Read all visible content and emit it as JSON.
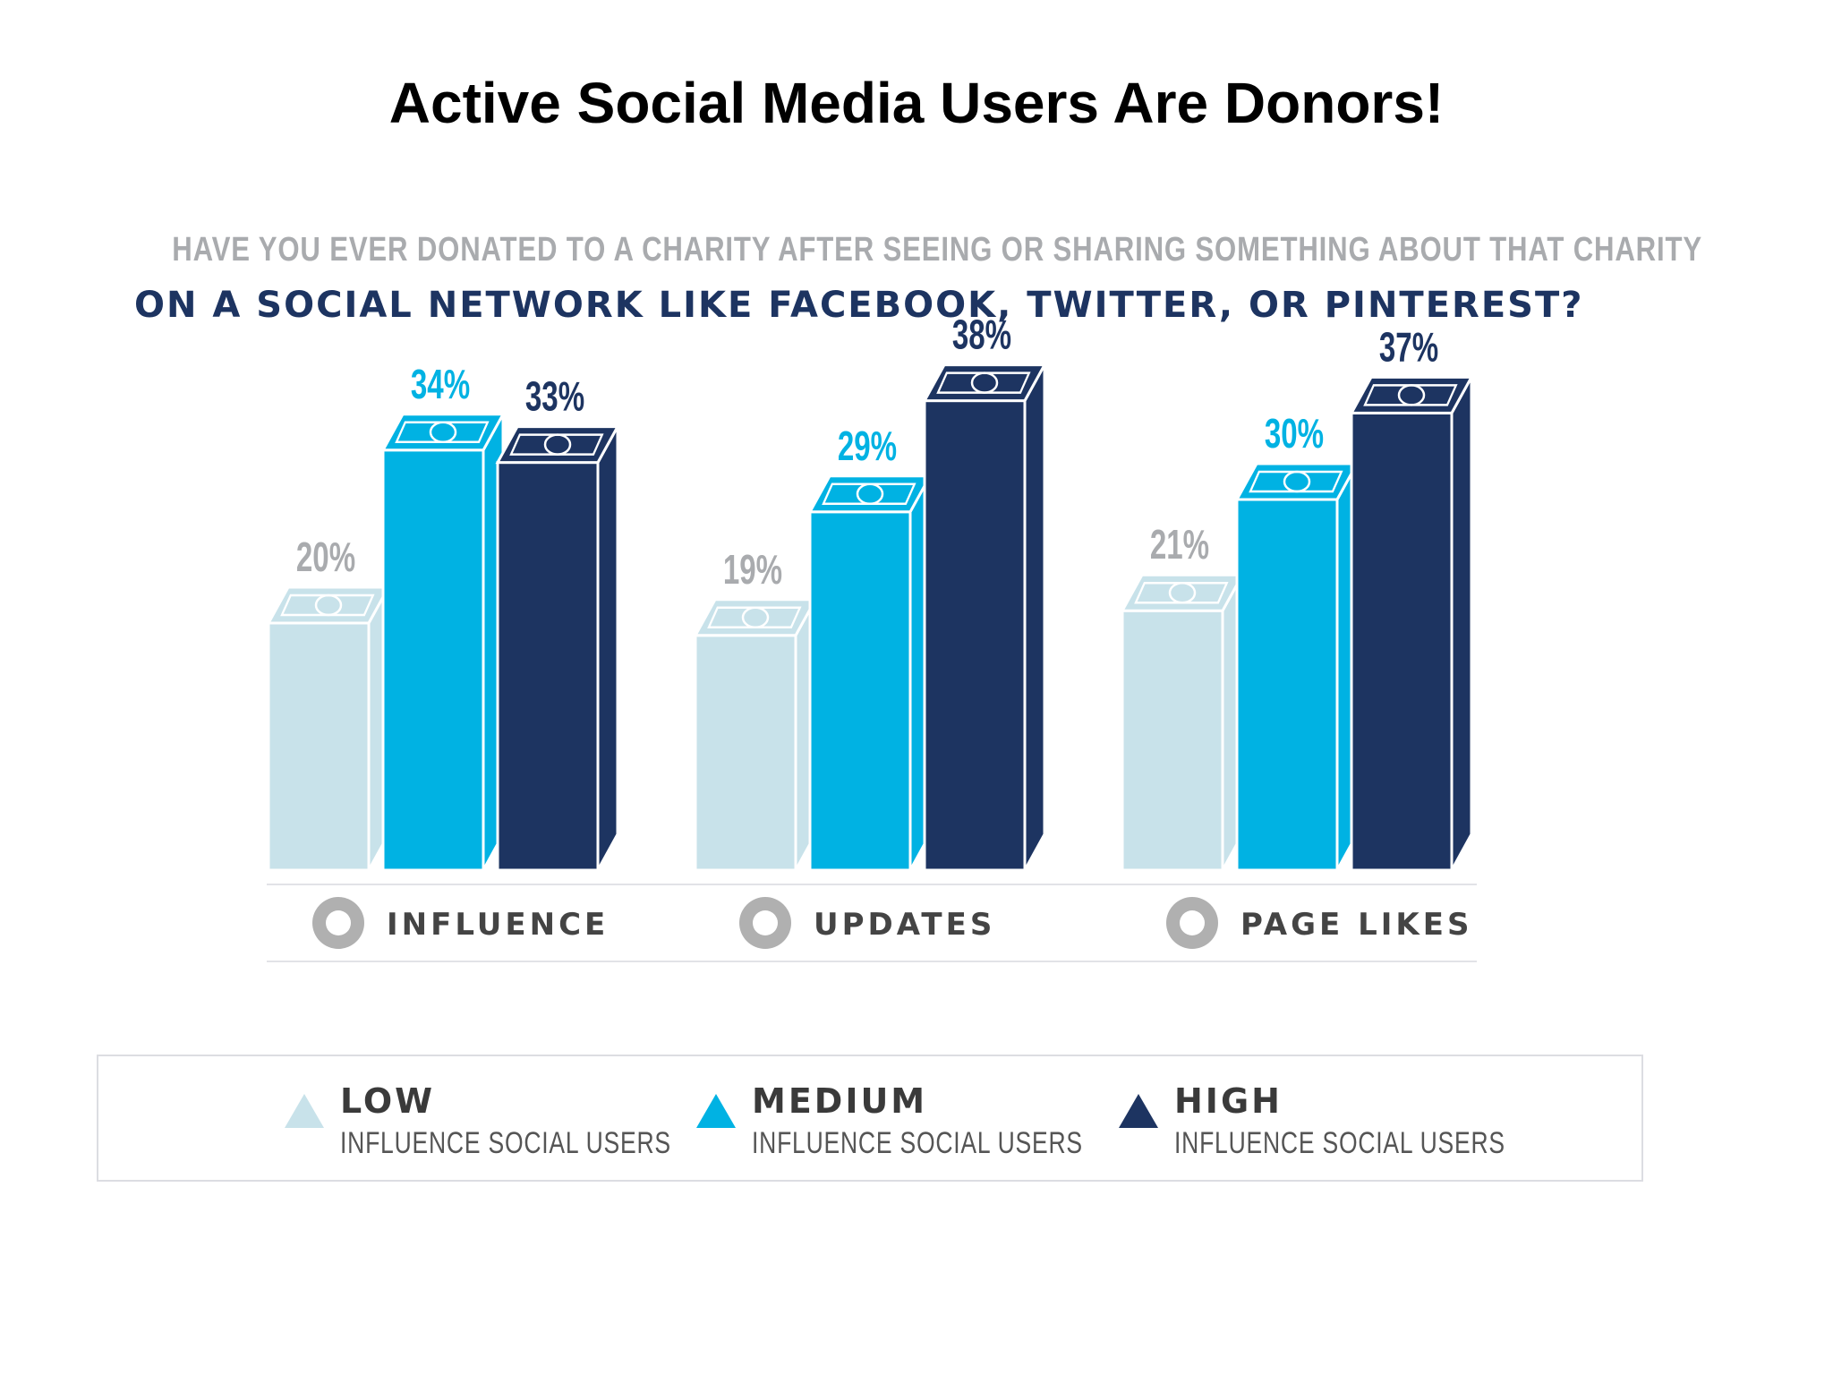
{
  "slide_title": "Active Social Media Users Are Donors!",
  "question": {
    "line1": "HAVE YOU EVER DONATED TO A CHARITY AFTER SEEING OR SHARING SOMETHING ABOUT THAT CHARITY",
    "line2": "ON A SOCIAL NETWORK LIKE FACEBOOK, TWITTER, OR PINTEREST?"
  },
  "colors": {
    "low": "#c8e2ea",
    "medium": "#00b2e3",
    "high": "#1d3461",
    "low_label": "#a9abae",
    "icon": "#b0b0b0"
  },
  "chart_data": {
    "type": "bar",
    "categories": [
      "INFLUENCE",
      "UPDATES",
      "PAGE LIKES"
    ],
    "category_icons": [
      "asterisk-icon",
      "speech-bubble-icon",
      "thumbs-up-icon"
    ],
    "series": [
      {
        "name": "LOW",
        "values": [
          20,
          19,
          21
        ],
        "value_labels": [
          "20%",
          "19%",
          "21%"
        ]
      },
      {
        "name": "MEDIUM",
        "values": [
          34,
          29,
          30
        ],
        "value_labels": [
          "34%",
          "29%",
          "30%"
        ]
      },
      {
        "name": "HIGH",
        "values": [
          33,
          38,
          37
        ],
        "value_labels": [
          "33%",
          "38%",
          "37%"
        ]
      }
    ],
    "ylim": [
      0,
      40
    ],
    "grid": false,
    "legend_placement": "bottom"
  },
  "legend": [
    {
      "name": "LOW",
      "sub": "INFLUENCE SOCIAL USERS"
    },
    {
      "name": "MEDIUM",
      "sub": "INFLUENCE SOCIAL USERS"
    },
    {
      "name": "HIGH",
      "sub": "INFLUENCE SOCIAL USERS"
    }
  ]
}
